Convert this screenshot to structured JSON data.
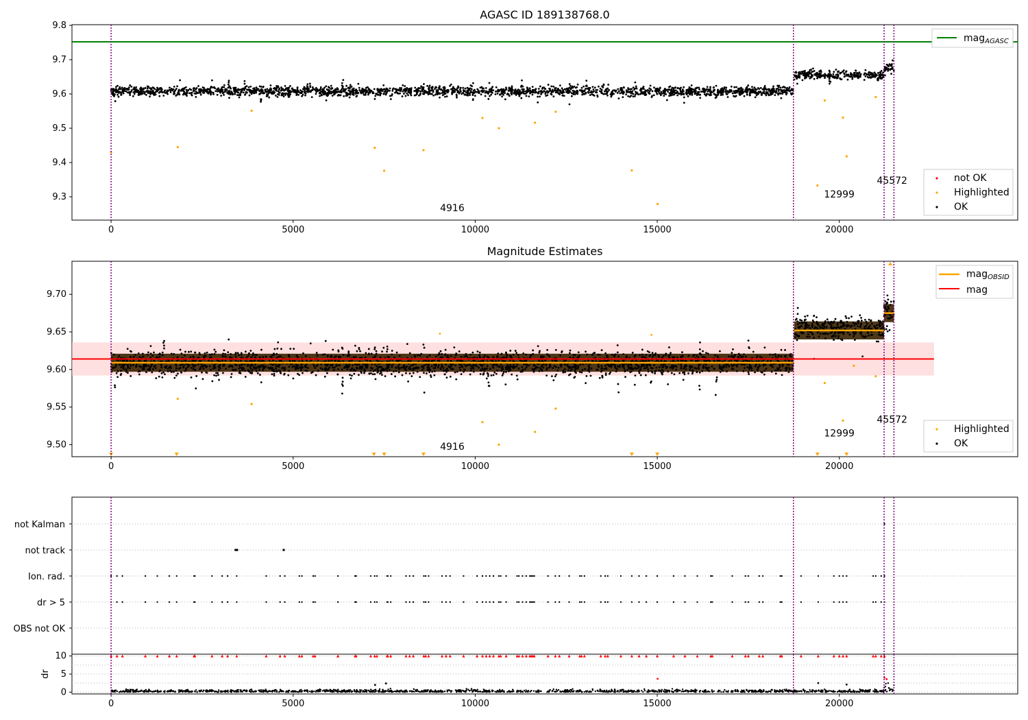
{
  "colors": {
    "ok": "#000000",
    "highlighted": "#ffa500",
    "not_ok": "#ff0000",
    "agasc_line": "#008000",
    "mag_line": "#ff0000",
    "obsid_mean": "#ffa500",
    "mag_band": "#ffcccc",
    "obs_boundary": "#800080"
  },
  "chart_data": [
    {
      "type": "scatter",
      "title": "AGASC ID 189138768.0",
      "xlim": [
        -1075,
        24900
      ],
      "ylim": [
        9.232,
        9.802
      ],
      "xticks": [
        0,
        5000,
        10000,
        15000,
        20000
      ],
      "yticks": [
        9.3,
        9.4,
        9.5,
        9.6,
        9.7,
        9.8
      ],
      "obs_boundaries": [
        0,
        18740,
        21230,
        21500
      ],
      "obs_labels": [
        {
          "x": 9370,
          "y": 9.258,
          "text": "4916"
        },
        {
          "x": 20000,
          "y": 9.298,
          "text": "12999"
        },
        {
          "x": 21450,
          "y": 9.338,
          "text": "45572"
        }
      ],
      "hlines": [
        {
          "name": "mag$_{AGASC}$",
          "y": 9.752,
          "color": "#008000"
        }
      ],
      "segments": [
        {
          "x0": 0,
          "x1": 18740,
          "mean": 9.608,
          "spread": 0.014
        },
        {
          "x0": 18760,
          "x1": 21230,
          "mean": 9.655,
          "spread": 0.013
        },
        {
          "x0": 21230,
          "x1": 21500,
          "mean": 9.675,
          "spread": 0.02
        }
      ],
      "outliers_highlighted": [
        [
          0,
          9.43
        ],
        [
          1830,
          9.445
        ],
        [
          3860,
          9.551
        ],
        [
          7240,
          9.443
        ],
        [
          7500,
          9.376
        ],
        [
          8580,
          9.436
        ],
        [
          10200,
          9.53
        ],
        [
          10650,
          9.5
        ],
        [
          11640,
          9.516
        ],
        [
          12210,
          9.548
        ],
        [
          14300,
          9.377
        ],
        [
          15010,
          9.279
        ],
        [
          19400,
          9.333
        ],
        [
          19600,
          9.581
        ],
        [
          20100,
          9.531
        ],
        [
          20200,
          9.418
        ],
        [
          21000,
          9.591
        ]
      ],
      "legend": [
        "not OK",
        "Highlighted",
        "OK"
      ]
    },
    {
      "type": "scatter",
      "title": "Magnitude Estimates",
      "xlim": [
        -1075,
        24900
      ],
      "ylim": [
        9.484,
        9.744
      ],
      "xticks": [
        0,
        5000,
        10000,
        15000,
        20000
      ],
      "yticks": [
        9.5,
        9.55,
        9.6,
        9.65,
        9.7
      ],
      "ytick_labels": [
        "9.50",
        "9.55",
        "9.60",
        "9.65",
        "9.70"
      ],
      "obs_boundaries": [
        0,
        18740,
        21230,
        21500
      ],
      "obs_labels": [
        {
          "x": 9370,
          "y": 9.493,
          "text": "4916"
        },
        {
          "x": 20000,
          "y": 9.511,
          "text": "12999"
        },
        {
          "x": 21450,
          "y": 9.529,
          "text": "45572"
        }
      ],
      "mag": {
        "y": 9.614,
        "band": [
          9.592,
          9.636
        ],
        "x_range": [
          -1075,
          22600
        ]
      },
      "obsid_means": [
        {
          "x0": 0,
          "x1": 18740,
          "mean": 9.609
        },
        {
          "x0": 18760,
          "x1": 21230,
          "mean": 9.652
        },
        {
          "x0": 21230,
          "x1": 21500,
          "mean": 9.675
        }
      ],
      "outliers_highlighted": [
        [
          1830,
          9.561
        ],
        [
          3860,
          9.554
        ],
        [
          10200,
          9.53
        ],
        [
          10650,
          9.5
        ],
        [
          11640,
          9.517
        ],
        [
          12210,
          9.548
        ],
        [
          19600,
          9.582
        ],
        [
          20100,
          9.532
        ],
        [
          21000,
          9.591
        ],
        [
          20400,
          9.605
        ]
      ],
      "clipped_low": [
        0,
        1800,
        7220,
        7500,
        8580,
        14300,
        15000,
        19400,
        20200
      ],
      "clipped_high": [
        21400
      ],
      "legend": [
        "mag$_{OBSID}$",
        "mag",
        "Highlighted",
        "OK"
      ]
    },
    {
      "type": "scatter",
      "title": "",
      "xlim": [
        -1075,
        24900
      ],
      "xticks": [
        0,
        5000,
        10000,
        15000,
        20000
      ],
      "flag_categories": [
        "not Kalman",
        "not track",
        "Ion. rad.",
        "dr > 5",
        "OBS not OK"
      ],
      "obs_boundaries": [
        0,
        18740,
        21230,
        21500
      ],
      "flags": {
        "not track": [
          3410,
          3430,
          3450,
          3470,
          4730,
          4750
        ],
        "not Kalman": [
          21240
        ],
        "ion_rad_and_dr5": [
          0,
          160,
          310,
          940,
          1270,
          1600,
          1800,
          2280,
          2300,
          2770,
          3050,
          3200,
          3450,
          4260,
          4640,
          4770,
          5170,
          5240,
          5550,
          5600,
          6230,
          6230,
          6700,
          6730,
          7130,
          7240,
          7300,
          7580,
          7600,
          7680,
          8100,
          8200,
          8300,
          8590,
          8640,
          8720,
          9090,
          9200,
          9310,
          9680,
          10050,
          10200,
          10300,
          10400,
          10500,
          10650,
          10700,
          10850,
          11150,
          11200,
          11300,
          11400,
          11500,
          11540,
          11580,
          11620,
          12000,
          12200,
          12310,
          12580,
          12870,
          12920,
          13000,
          13450,
          13570,
          13640,
          14000,
          14300,
          14500,
          14700,
          15000,
          15450,
          15760,
          16100,
          16470,
          16510,
          17060,
          17420,
          17500,
          17800,
          17900,
          18380,
          18420,
          18950,
          19420,
          19850,
          20000,
          20100,
          20200,
          20930,
          21000,
          21150,
          21240
        ]
      },
      "dr": {
        "ylabel": "dr",
        "ylim": [
          -0.5,
          10.5
        ],
        "yticks": [
          0,
          5,
          10
        ],
        "typical_max": 1.0,
        "red_at_10": true,
        "extra_points": [
          [
            7250,
            2.0
          ],
          [
            7550,
            2.4
          ],
          [
            15010,
            3.7
          ],
          [
            19420,
            2.5
          ],
          [
            20200,
            2.1
          ],
          [
            21240,
            4.0
          ],
          [
            21300,
            3.6
          ]
        ]
      }
    }
  ]
}
